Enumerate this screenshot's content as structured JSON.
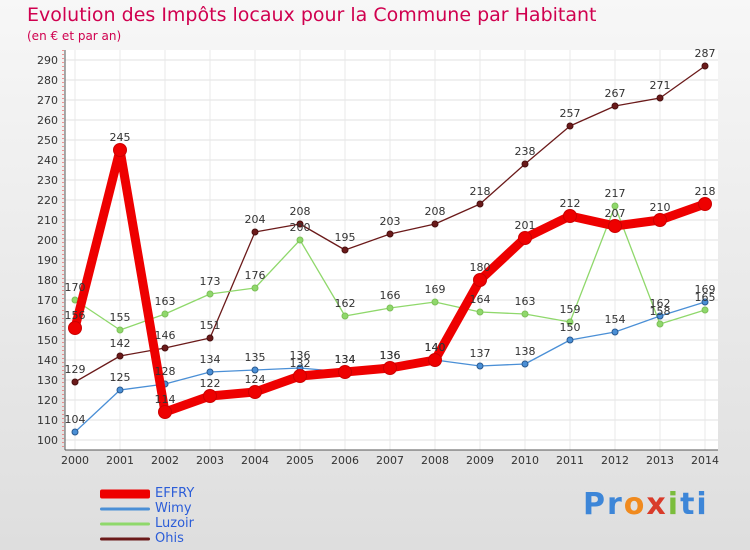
{
  "header": {
    "title": "Evolution des Impôts locaux pour la Commune par Habitant",
    "subtitle": "(en € et par an)"
  },
  "logo": {
    "text": "Proxiti",
    "parts": [
      "Pr",
      "o",
      "x",
      "i",
      "ti"
    ]
  },
  "chart_data": {
    "type": "line",
    "title": "Evolution des Impôts locaux pour la Commune par Habitant",
    "subtitle": "(en € et par an)",
    "xlabel": "",
    "ylabel": "",
    "ylim": [
      100,
      290
    ],
    "yticks": [
      100,
      110,
      120,
      130,
      140,
      150,
      160,
      170,
      180,
      190,
      200,
      210,
      220,
      230,
      240,
      250,
      260,
      270,
      280,
      290
    ],
    "categories": [
      "2000",
      "2001",
      "2002",
      "2003",
      "2004",
      "2005",
      "2006",
      "2007",
      "2008",
      "2009",
      "2010",
      "2011",
      "2012",
      "2013",
      "2014"
    ],
    "grid": true,
    "legend_position": "bottom-left",
    "series": [
      {
        "name": "Ohis",
        "color": "#6b1a1a",
        "values": [
          129,
          142,
          146,
          151,
          204,
          208,
          195,
          203,
          208,
          218,
          238,
          257,
          267,
          271,
          287
        ]
      },
      {
        "name": "Luzoir",
        "color": "#8fd86b",
        "values": [
          170,
          155,
          163,
          173,
          176,
          200,
          162,
          166,
          169,
          164,
          163,
          159,
          217,
          158,
          165
        ]
      },
      {
        "name": "Wimy",
        "color": "#4a8fd6",
        "values": [
          104,
          125,
          128,
          134,
          135,
          136,
          134,
          136,
          140,
          137,
          138,
          150,
          154,
          162,
          169
        ]
      },
      {
        "name": "EFFRY",
        "color": "#ee0000",
        "values": [
          156,
          245,
          114,
          122,
          124,
          132,
          134,
          136,
          140,
          180,
          201,
          212,
          207,
          210,
          218
        ]
      }
    ],
    "legend": [
      "EFFRY",
      "Wimy",
      "Luzoir",
      "Ohis"
    ]
  }
}
